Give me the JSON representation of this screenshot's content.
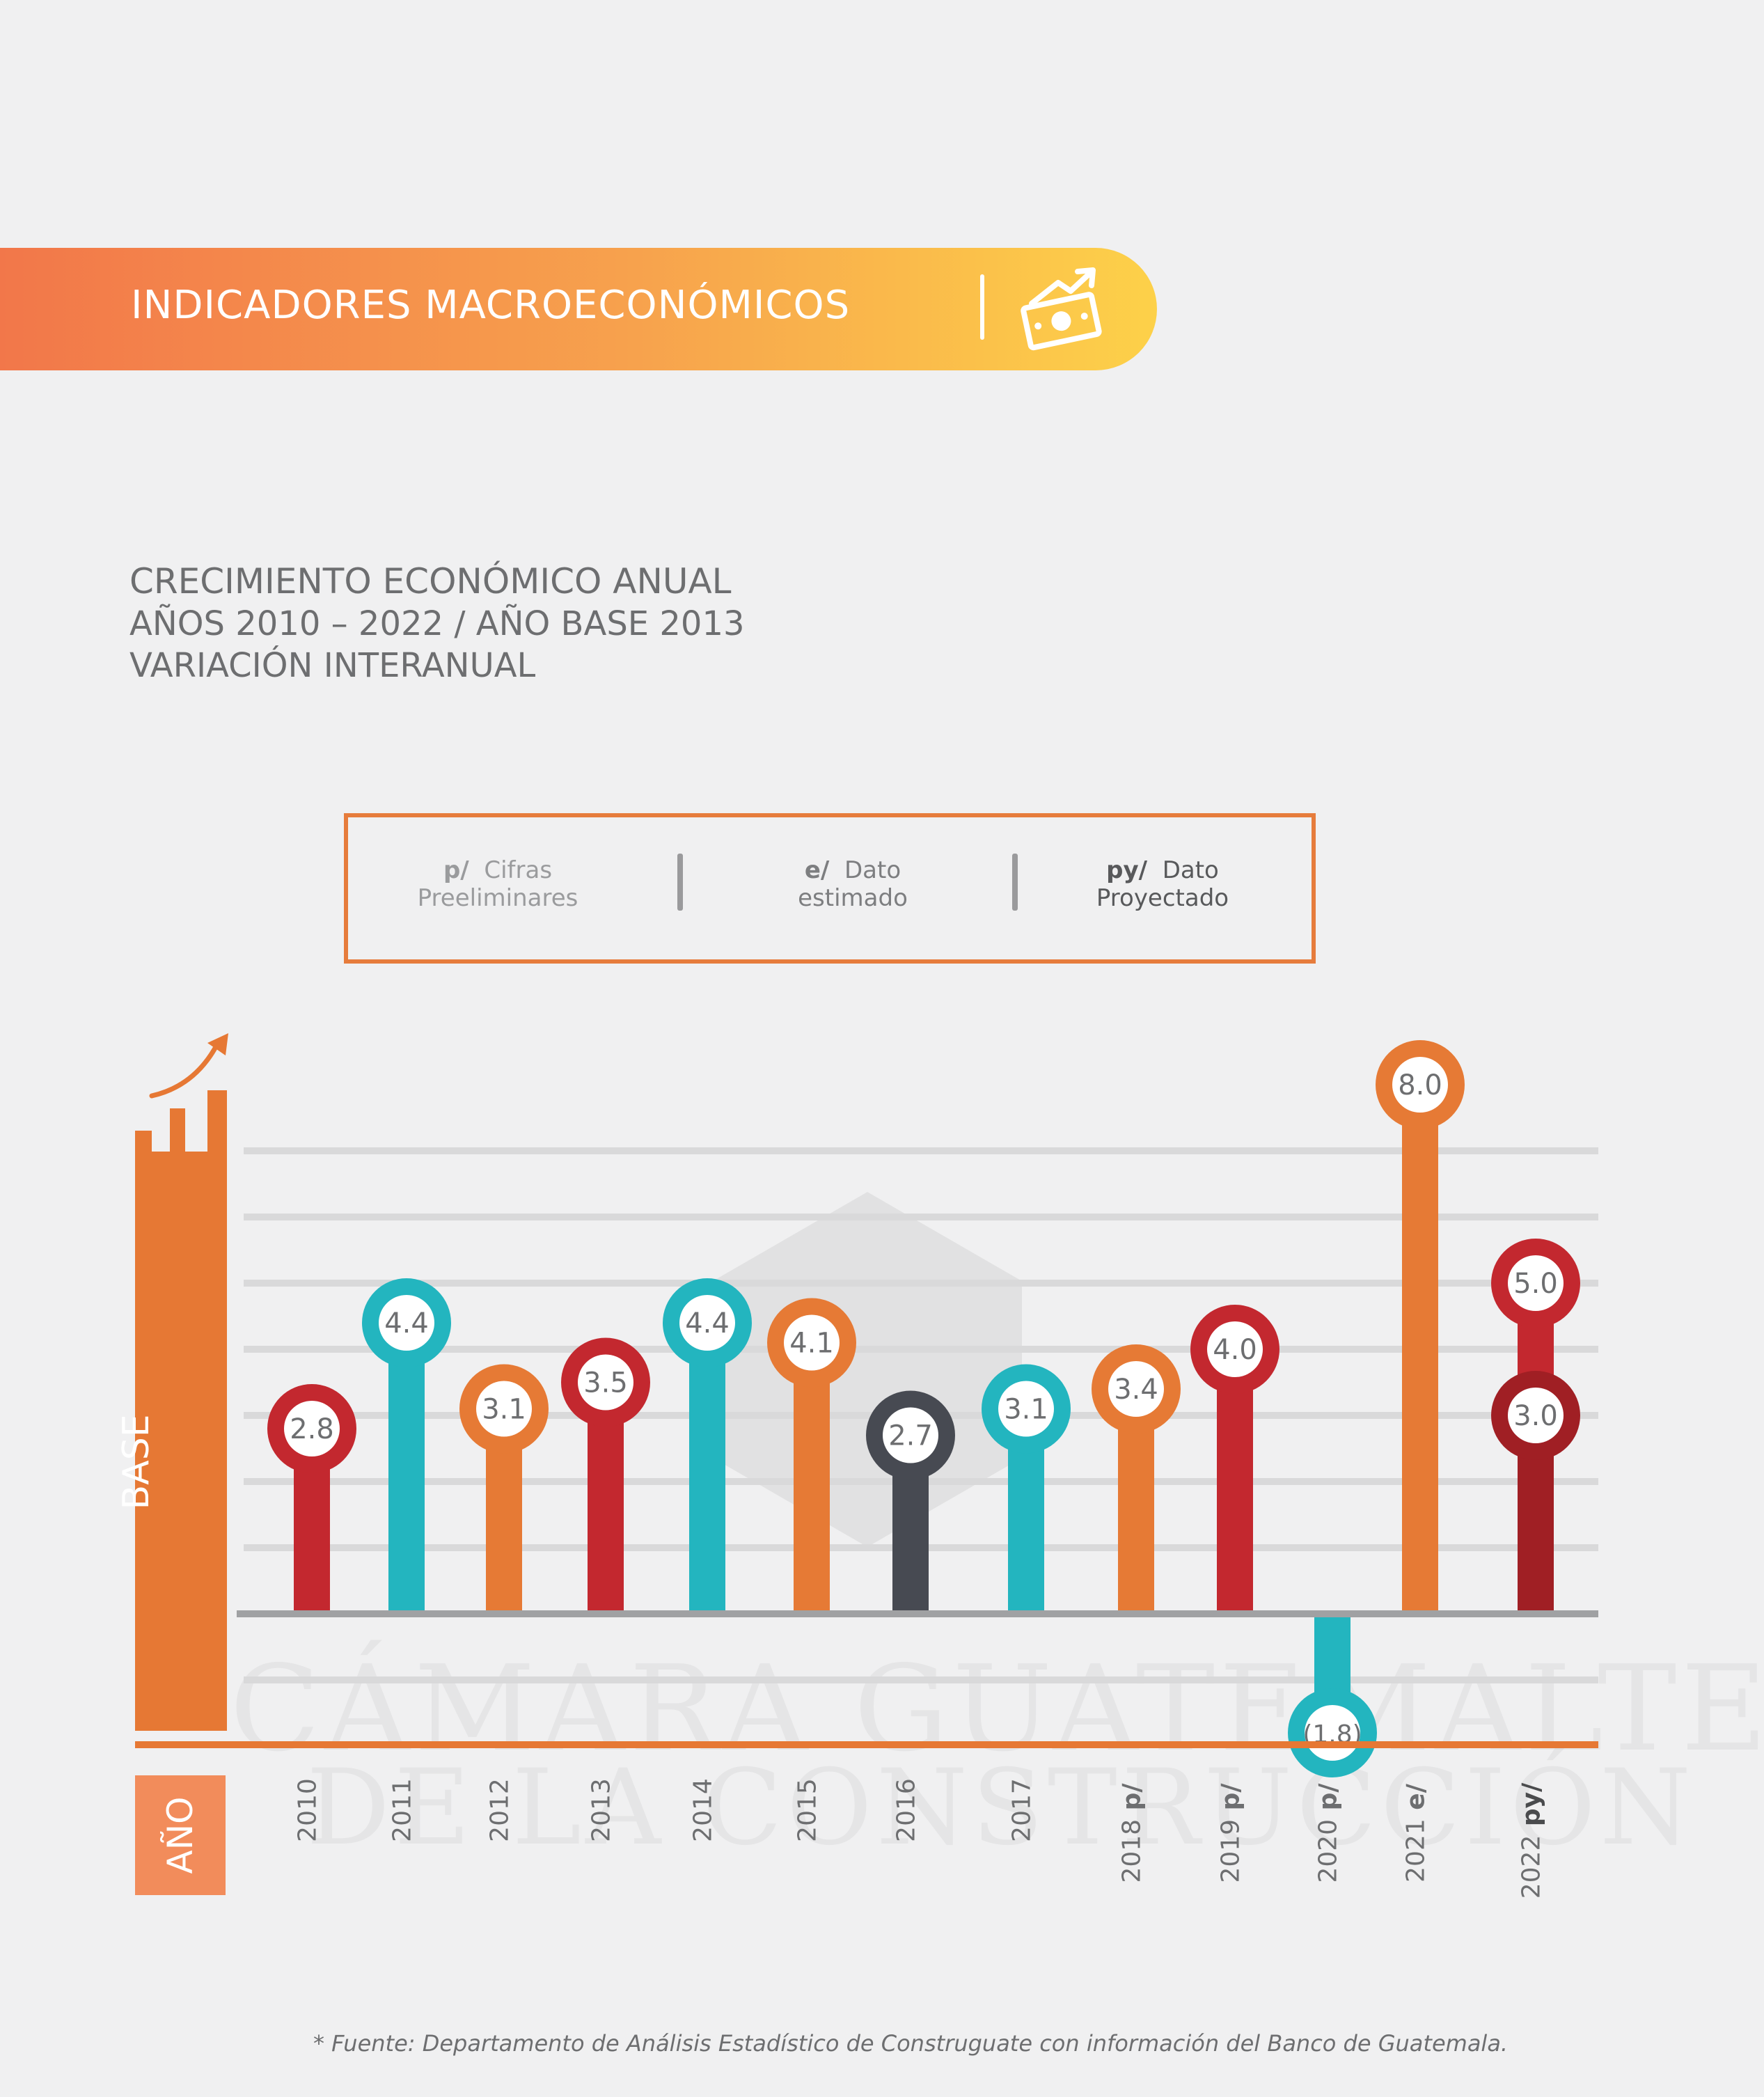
{
  "header": {
    "title": "INDICADORES MACROECONÓMICOS",
    "icon": "money-growth-icon"
  },
  "subtitle": {
    "line1": "CRECIMIENTO ECONÓMICO ANUAL",
    "line2": "AÑOS 2010 – 2022 / AÑO BASE 2013",
    "line3": "VARIACIÓN INTERANUAL"
  },
  "legend": [
    {
      "code": "p/",
      "text1": "Cifras",
      "text2": "Preeliminares"
    },
    {
      "code": "e/",
      "text1": "Dato",
      "text2": "estimado"
    },
    {
      "code": "py/",
      "text1": "Dato",
      "text2": "Proyectado"
    }
  ],
  "axis": {
    "base_label": "BASE",
    "year_label": "AÑO"
  },
  "watermark": {
    "line1": "CÁMARA GUATEMALTECA",
    "line2": "DE LA CONSTRUCCIÓN"
  },
  "footnote": "* Fuente: Departamento de Análisis Estadístico de Construguate con información del Banco de Guatemala.",
  "colors": {
    "red": "#c3282f",
    "teal": "#23b5bf",
    "orange": "#e67a35",
    "dark": "#474a52",
    "darkred": "#a01f24"
  },
  "chart_data": {
    "type": "bar",
    "title": "",
    "xlabel": "AÑO",
    "ylabel": "BASE",
    "ylim": [
      -2,
      8
    ],
    "categories": [
      "2010",
      "2011",
      "2012",
      "2013",
      "2014",
      "2015",
      "2016",
      "2017",
      "2018",
      "2019",
      "2020",
      "2021",
      "2022"
    ],
    "category_suffix": [
      "",
      "",
      "",
      "",
      "",
      "",
      "",
      "",
      "p/",
      "p/",
      "p/",
      "e/",
      "py/"
    ],
    "values": [
      2.8,
      4.4,
      3.1,
      3.5,
      4.4,
      4.1,
      2.7,
      3.1,
      3.4,
      4.0,
      -1.8,
      8.0,
      5.0
    ],
    "value_labels": [
      "2.8",
      "4.4",
      "3.1",
      "3.5",
      "4.4",
      "4.1",
      "2.7",
      "3.1",
      "3.4",
      "4.0",
      "(1.8)",
      "8.0",
      "5.0"
    ],
    "bar_colors": [
      "red",
      "teal",
      "orange",
      "red",
      "teal",
      "orange",
      "dark",
      "teal",
      "orange",
      "red",
      "teal",
      "orange",
      "red"
    ],
    "extra_points": [
      {
        "category": "2022",
        "value": 3.0,
        "label": "3.0",
        "color": "darkred"
      }
    ]
  }
}
